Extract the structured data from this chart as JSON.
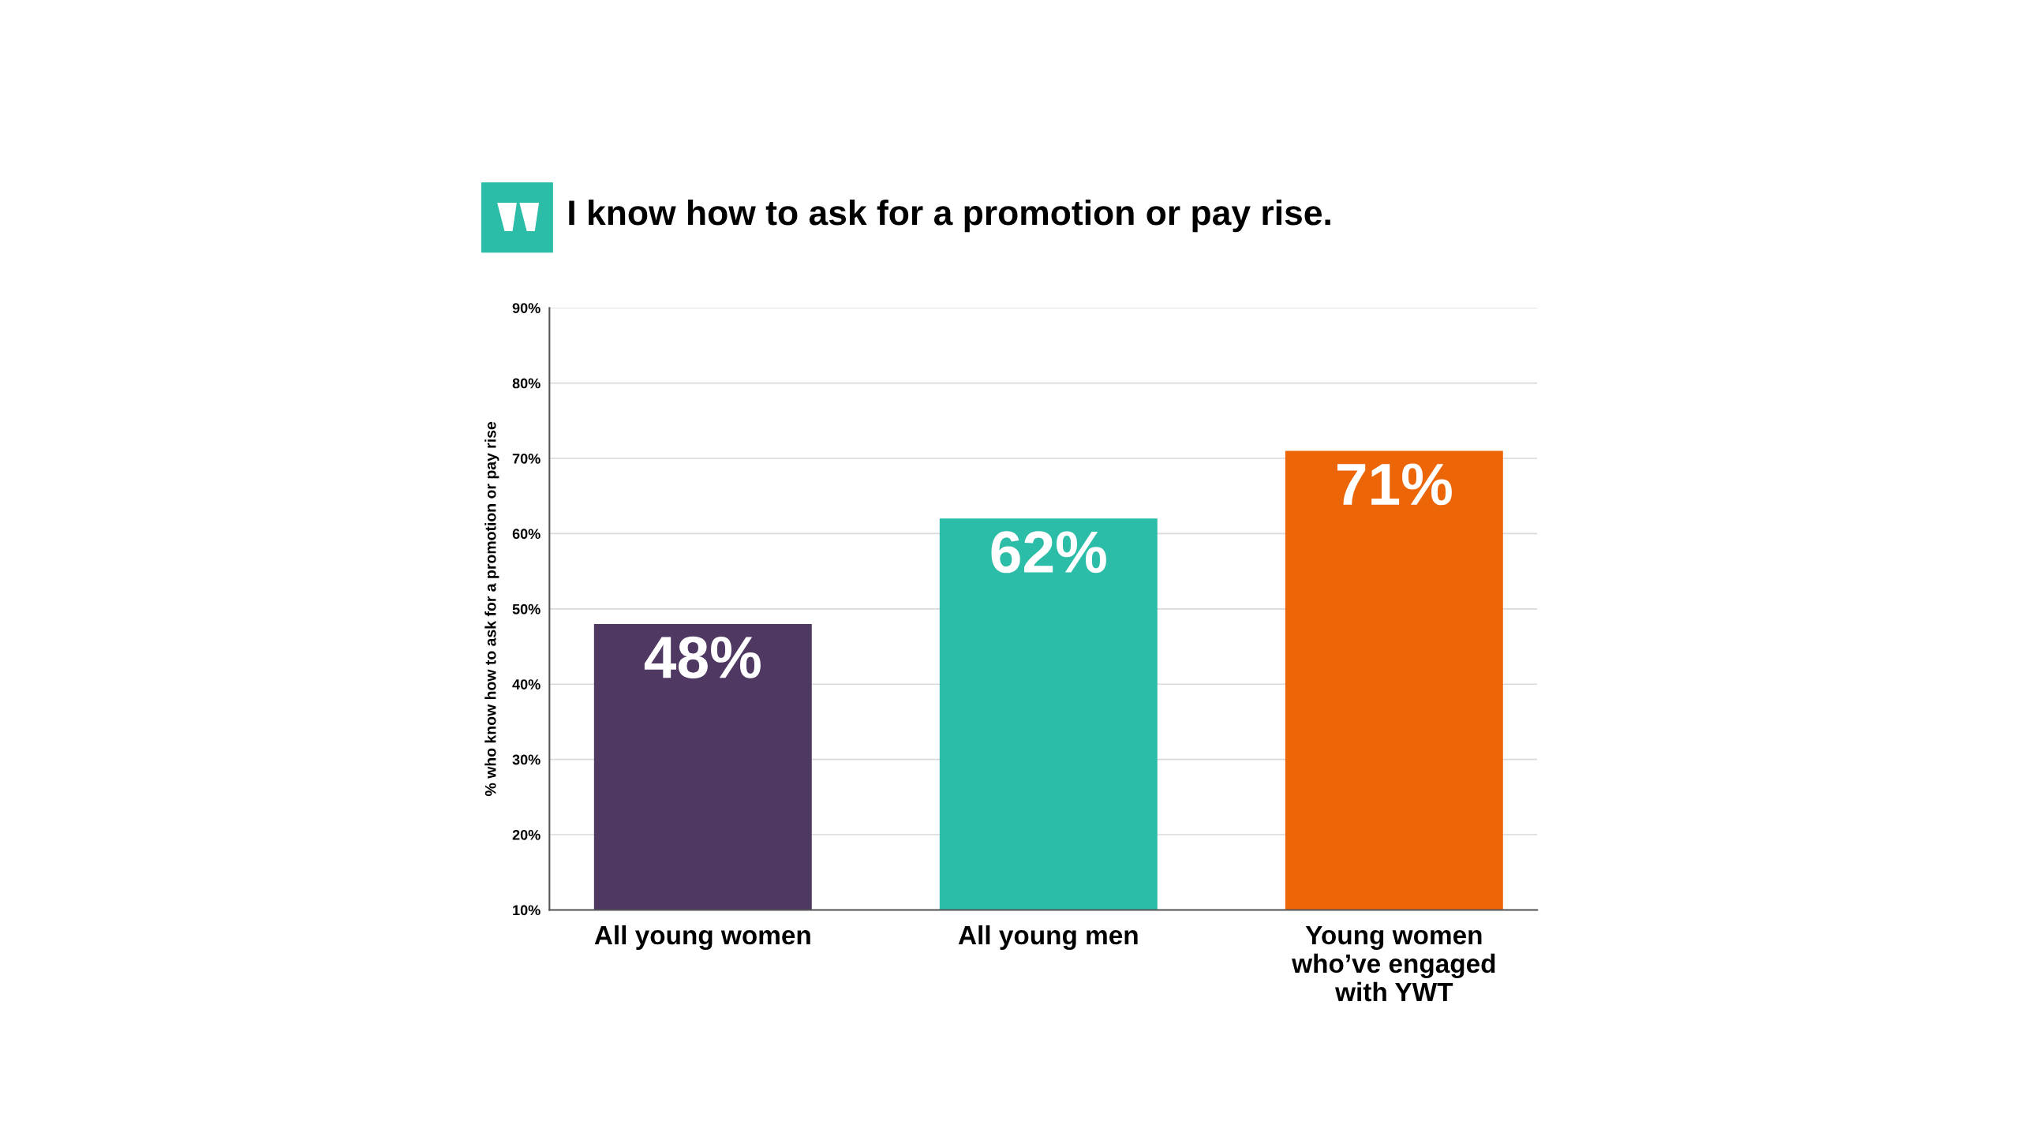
{
  "chart_data": {
    "type": "bar",
    "title": "I know how to ask for a promotion or pay rise.",
    "ylabel": "% who know how to ask for a promotion or pay rise",
    "categories": [
      "All young women",
      "All young men",
      "Young women\nwho’ve engaged\nwith YWT"
    ],
    "values": [
      48,
      62,
      71
    ],
    "colors": [
      "#4f3862",
      "#2bbda8",
      "#ec6608"
    ],
    "value_labels": [
      "48%",
      "62%",
      "71%"
    ],
    "ylim": [
      10,
      90
    ],
    "yticks": [
      {
        "value": 10,
        "label": "10%"
      },
      {
        "value": 20,
        "label": "20%"
      },
      {
        "value": 30,
        "label": "30%"
      },
      {
        "value": 40,
        "label": "40%"
      },
      {
        "value": 50,
        "label": "50%"
      },
      {
        "value": 60,
        "label": "60%"
      },
      {
        "value": 70,
        "label": "70%"
      },
      {
        "value": 80,
        "label": "80%"
      },
      {
        "value": 90,
        "label": "90%"
      }
    ],
    "grid": "y"
  }
}
